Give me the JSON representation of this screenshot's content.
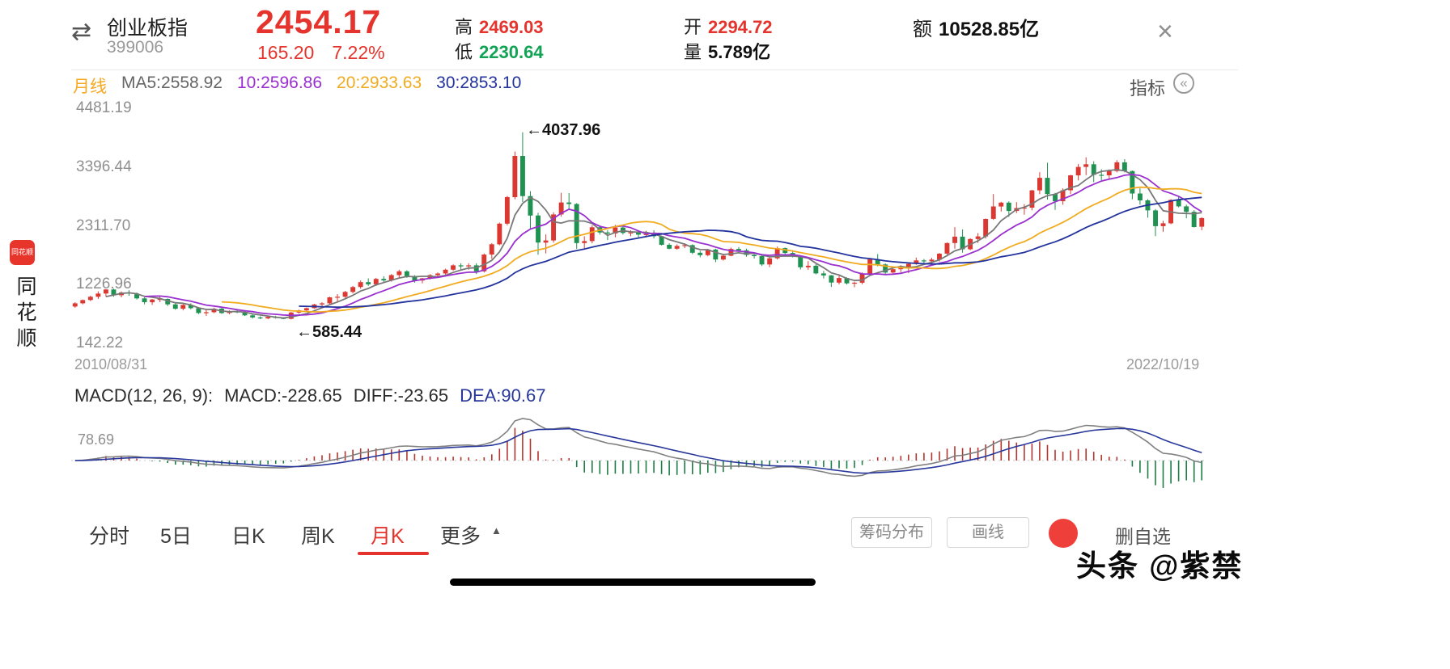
{
  "header": {
    "name": "创业板指",
    "code": "399006",
    "price": "2454.17",
    "change": "165.20",
    "change_pct": "7.22%",
    "high_label": "高",
    "high_value": "2469.03",
    "low_label": "低",
    "low_value": "2230.64",
    "open_label": "开",
    "open_value": "2294.72",
    "volume_label": "量",
    "volume_value": "5.789亿",
    "amount_label": "额",
    "amount_value": "10528.85亿"
  },
  "indicator_bar": {
    "period_label": "月线",
    "ma5": "MA5:2558.92",
    "ma10": "10:2596.86",
    "ma20": "20:2933.63",
    "ma30": "30:2853.10",
    "indicator_label": "指标"
  },
  "main_chart": {
    "y_labels": [
      "4481.19",
      "3396.44",
      "2311.70",
      "1226.96",
      "142.22"
    ],
    "high_annotation": "←4037.96",
    "low_annotation": "←585.44",
    "start_date": "2010/08/31",
    "end_date": "2022/10/19"
  },
  "macd_panel": {
    "title": "MACD(12, 26, 9):",
    "macd_value": "MACD:-228.65",
    "diff_value": "DIFF:-23.65",
    "dea_value": "DEA:90.67",
    "axis_label": "78.69"
  },
  "tabs": [
    {
      "label": "分时",
      "active": false
    },
    {
      "label": "5日",
      "active": false
    },
    {
      "label": "日K",
      "active": false
    },
    {
      "label": "周K",
      "active": false
    },
    {
      "label": "月K",
      "active": true
    },
    {
      "label": "更多",
      "active": false
    }
  ],
  "toolbar": {
    "chip_distribution": "筹码分布",
    "draw_line": "画线",
    "delete_watchlist": "删自选"
  },
  "watermarks": {
    "left_app_icon_text": "同花顺",
    "left_app_name": "同花顺",
    "bottom_right": "头条 @紫禁"
  },
  "icons": {
    "close": "×",
    "switch": "⇄",
    "collapse": "«",
    "more_caret": "▲"
  },
  "colors": {
    "text_red": "#e5342d",
    "text_green": "#12a355",
    "candle_up": "#dc3832",
    "candle_down": "#1f9150",
    "ma5": "#787878",
    "ma10": "#9a30cf",
    "ma20": "#f0ab1f",
    "ma30": "#23339e",
    "macd_bar_up": "#b23630",
    "macd_bar_down": "#1e7d44",
    "macd_diff": "#808080",
    "macd_dea": "#28379b",
    "period_orange": "#f7a823",
    "toutiao_red": "#ee3f3b"
  },
  "chart_data": {
    "type": "candlestick",
    "title": "创业板指 399006 月K",
    "interval": "month",
    "x_start": "2010-08",
    "x_end": "2022-10",
    "ylim": [
      142.22,
      4481.19
    ],
    "y_ticks": [
      4481.19,
      3396.44,
      2311.7,
      1226.96,
      142.22
    ],
    "peak_high": 4037.96,
    "trough_low": 585.44,
    "last_candle": {
      "open": 2294.72,
      "high": 2469.03,
      "low": 2230.64,
      "close": 2454.17
    },
    "ma_periods": [
      5,
      10,
      20,
      30
    ],
    "macd_params": [
      12,
      26,
      9
    ],
    "ohlc": [
      [
        822,
        902,
        800,
        882
      ],
      [
        882,
        952,
        862,
        942
      ],
      [
        942,
        1022,
        922,
        1002
      ],
      [
        1002,
        1102,
        962,
        1062
      ],
      [
        1062,
        1142,
        1002,
        1137
      ],
      [
        1137,
        1152,
        1002,
        1032
      ],
      [
        1032,
        1102,
        992,
        1082
      ],
      [
        1082,
        1122,
        1022,
        1062
      ],
      [
        1062,
        1082,
        952,
        972
      ],
      [
        972,
        992,
        862,
        902
      ],
      [
        902,
        962,
        852,
        952
      ],
      [
        952,
        1002,
        902,
        962
      ],
      [
        962,
        972,
        832,
        862
      ],
      [
        862,
        882,
        762,
        782
      ],
      [
        782,
        872,
        752,
        852
      ],
      [
        852,
        882,
        772,
        792
      ],
      [
        792,
        802,
        682,
        702
      ],
      [
        702,
        762,
        650,
        718
      ],
      [
        718,
        802,
        700,
        784
      ],
      [
        784,
        800,
        688,
        702
      ],
      [
        702,
        752,
        680,
        731
      ],
      [
        731,
        770,
        700,
        721
      ],
      [
        721,
        732,
        648,
        660
      ],
      [
        660,
        682,
        600,
        621
      ],
      [
        621,
        641,
        590,
        603
      ],
      [
        603,
        642,
        588,
        631
      ],
      [
        631,
        652,
        600,
        612
      ],
      [
        612,
        622,
        588,
        596
      ],
      [
        596,
        722,
        585.44,
        712
      ],
      [
        712,
        762,
        690,
        752
      ],
      [
        752,
        802,
        731,
        792
      ],
      [
        792,
        872,
        781,
        861
      ],
      [
        861,
        902,
        821,
        882
      ],
      [
        882,
        1002,
        872,
        992
      ],
      [
        992,
        1052,
        902,
        1002
      ],
      [
        1002,
        1112,
        982,
        1092
      ],
      [
        1092,
        1202,
        1062,
        1182
      ],
      [
        1182,
        1302,
        1152,
        1272
      ],
      [
        1272,
        1342,
        1202,
        1232
      ],
      [
        1232,
        1352,
        1202,
        1332
      ],
      [
        1332,
        1382,
        1262,
        1304
      ],
      [
        1304,
        1423,
        1282,
        1402
      ],
      [
        1402,
        1502,
        1352,
        1472
      ],
      [
        1472,
        1492,
        1352,
        1382
      ],
      [
        1382,
        1402,
        1262,
        1302
      ],
      [
        1302,
        1352,
        1252,
        1342
      ],
      [
        1342,
        1422,
        1322,
        1402
      ],
      [
        1402,
        1452,
        1352,
        1432
      ],
      [
        1432,
        1522,
        1402,
        1502
      ],
      [
        1502,
        1602,
        1482,
        1582
      ],
      [
        1582,
        1622,
        1482,
        1562
      ],
      [
        1562,
        1622,
        1502,
        1582
      ],
      [
        1582,
        1622,
        1422,
        1472
      ],
      [
        1472,
        1802,
        1452,
        1781
      ],
      [
        1781,
        1992,
        1702,
        1971
      ],
      [
        1971,
        2372,
        1952,
        2352
      ],
      [
        2352,
        2862,
        2322,
        2842
      ],
      [
        2842,
        3682,
        2802,
        3602
      ],
      [
        3602,
        4037.96,
        2752,
        2861
      ],
      [
        2861,
        2952,
        2252,
        2502
      ],
      [
        2502,
        2552,
        1779,
        2002
      ],
      [
        2002,
        2152,
        1802,
        2042
      ],
      [
        2042,
        2562,
        2002,
        2522
      ],
      [
        2522,
        2922,
        2482,
        2742
      ],
      [
        2742,
        2916,
        2602,
        2714
      ],
      [
        2714,
        2730,
        1888,
        1994
      ],
      [
        1994,
        2120,
        1870,
        2030
      ],
      [
        2030,
        2320,
        1990,
        2285
      ],
      [
        2285,
        2320,
        2150,
        2190
      ],
      [
        2190,
        2230,
        2050,
        2170
      ],
      [
        2170,
        2330,
        2100,
        2280
      ],
      [
        2280,
        2310,
        2150,
        2180
      ],
      [
        2180,
        2230,
        2120,
        2190
      ],
      [
        2190,
        2210,
        2100,
        2150
      ],
      [
        2150,
        2220,
        2100,
        2160
      ],
      [
        2160,
        2230,
        2080,
        2120
      ],
      [
        2120,
        2130,
        1950,
        1962
      ],
      [
        1962,
        1990,
        1880,
        1890
      ],
      [
        1890,
        1970,
        1870,
        1940
      ],
      [
        1940,
        1990,
        1900,
        1955
      ],
      [
        1955,
        1970,
        1790,
        1815
      ],
      [
        1815,
        1850,
        1730,
        1770
      ],
      [
        1770,
        1890,
        1750,
        1875
      ],
      [
        1875,
        1890,
        1640,
        1690
      ],
      [
        1690,
        1780,
        1670,
        1760
      ],
      [
        1760,
        1910,
        1750,
        1885
      ],
      [
        1885,
        1920,
        1830,
        1860
      ],
      [
        1860,
        1890,
        1740,
        1775
      ],
      [
        1775,
        1820,
        1710,
        1752
      ],
      [
        1752,
        1795,
        1571,
        1598
      ],
      [
        1598,
        1750,
        1550,
        1712
      ],
      [
        1712,
        1928,
        1690,
        1900
      ],
      [
        1900,
        1912,
        1748,
        1810
      ],
      [
        1810,
        1860,
        1728,
        1743
      ],
      [
        1743,
        1750,
        1505,
        1546
      ],
      [
        1546,
        1660,
        1500,
        1575
      ],
      [
        1575,
        1605,
        1417,
        1434
      ],
      [
        1434,
        1480,
        1339,
        1397
      ],
      [
        1397,
        1405,
        1185,
        1264
      ],
      [
        1264,
        1388,
        1230,
        1349
      ],
      [
        1349,
        1360,
        1226,
        1250
      ],
      [
        1250,
        1282,
        1179,
        1262
      ],
      [
        1262,
        1452,
        1232,
        1425
      ],
      [
        1425,
        1705,
        1405,
        1695
      ],
      [
        1695,
        1792,
        1565,
        1599
      ],
      [
        1599,
        1620,
        1421,
        1450
      ],
      [
        1450,
        1536,
        1405,
        1511
      ],
      [
        1511,
        1585,
        1452,
        1550
      ],
      [
        1550,
        1625,
        1438,
        1611
      ],
      [
        1611,
        1725,
        1592,
        1673
      ],
      [
        1673,
        1700,
        1596,
        1656
      ],
      [
        1656,
        1723,
        1598,
        1688
      ],
      [
        1688,
        1812,
        1651,
        1798
      ],
      [
        1798,
        2004,
        1748,
        1994
      ],
      [
        1994,
        2288,
        1890,
        2112
      ],
      [
        2112,
        2246,
        1817,
        1879
      ],
      [
        1879,
        2082,
        1861,
        2069
      ],
      [
        2069,
        2178,
        1995,
        2116
      ],
      [
        2116,
        2448,
        2078,
        2439
      ],
      [
        2439,
        2898,
        2420,
        2669
      ],
      [
        2669,
        2755,
        2575,
        2740
      ],
      [
        2740,
        2764,
        2477,
        2587
      ],
      [
        2587,
        2749,
        2548,
        2640
      ],
      [
        2640,
        2713,
        2518,
        2647
      ],
      [
        2647,
        2973,
        2598,
        2966
      ],
      [
        2966,
        3302,
        2896,
        3197
      ],
      [
        3197,
        3476,
        2796,
        2898
      ],
      [
        2898,
        2920,
        2605,
        2766
      ],
      [
        2766,
        3003,
        2701,
        2968
      ],
      [
        2968,
        3253,
        2899,
        3244
      ],
      [
        3244,
        3452,
        3149,
        3399
      ],
      [
        3399,
        3576,
        3246,
        3448
      ],
      [
        3448,
        3503,
        3117,
        3252
      ],
      [
        3252,
        3355,
        3152,
        3244
      ],
      [
        3244,
        3354,
        3182,
        3323
      ],
      [
        3323,
        3524,
        3298,
        3484
      ],
      [
        3484,
        3542,
        3299,
        3322
      ],
      [
        3322,
        3332,
        2803,
        2908
      ],
      [
        2908,
        3004,
        2702,
        2782
      ],
      [
        2782,
        2804,
        2462,
        2597
      ],
      [
        2597,
        2622,
        2121,
        2306
      ],
      [
        2306,
        2404,
        2201,
        2358
      ],
      [
        2358,
        2804,
        2342,
        2791
      ],
      [
        2791,
        2852,
        2652,
        2671
      ],
      [
        2671,
        2702,
        2451,
        2570
      ],
      [
        2570,
        2601,
        2281,
        2289
      ],
      [
        2294.72,
        2469.03,
        2230.64,
        2454.17
      ]
    ]
  }
}
